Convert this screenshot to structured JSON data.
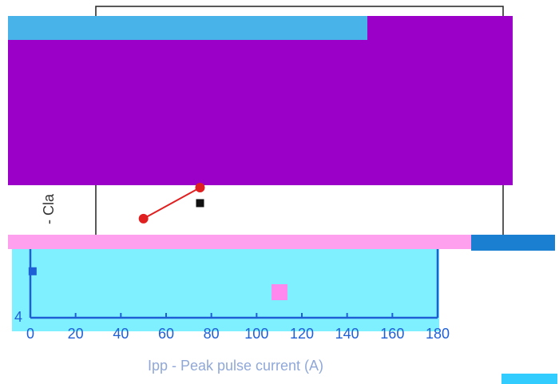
{
  "chart_data": {
    "type": "line",
    "ylabel": "- Cla",
    "xlabel": "Ipp - Peak pulse current (A)",
    "xlim": [
      0,
      180
    ],
    "xticks": [
      0,
      20,
      40,
      60,
      80,
      100,
      120,
      140,
      160,
      180
    ],
    "ylim": [
      4,
      14
    ],
    "yticks": [
      4
    ],
    "series": [
      {
        "color": "#e02020",
        "marker": "circle",
        "x": [
          50,
          75
        ],
        "values": [
          7.2,
          8.2
        ]
      },
      {
        "color": "#111111",
        "marker": "square",
        "x": [
          75
        ],
        "values": [
          7.7
        ]
      },
      {
        "color": "#1f5fd6",
        "marker": "square",
        "x": [
          1
        ],
        "values": [
          5.5
        ]
      }
    ]
  }
}
